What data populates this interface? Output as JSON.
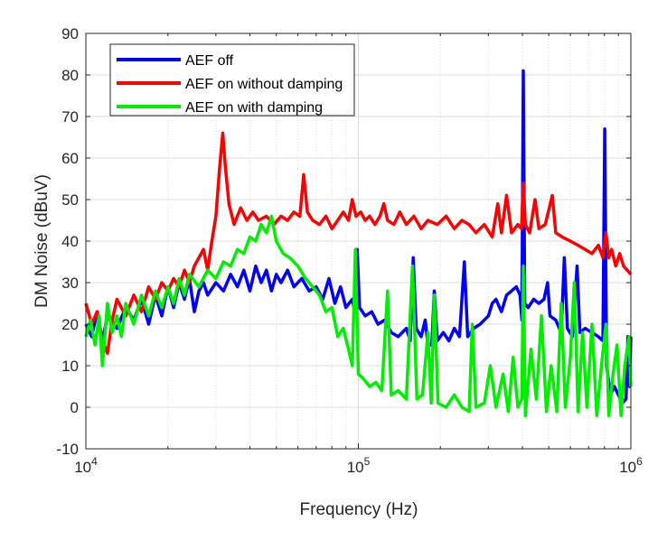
{
  "chart_data": {
    "type": "line",
    "title": "",
    "xlabel": "Frequency (Hz)",
    "ylabel": "DM Noise (dBuV)",
    "xscale": "log",
    "xlim": [
      10000,
      1000000
    ],
    "ylim": [
      -10,
      90
    ],
    "grid": true,
    "legend_position": "top-left",
    "x_ticks": [
      {
        "base": "10",
        "exp": "4",
        "value": 10000
      },
      {
        "base": "10",
        "exp": "5",
        "value": 100000
      },
      {
        "base": "10",
        "exp": "6",
        "value": 1000000
      }
    ],
    "y_ticks": [
      "-10",
      "0",
      "10",
      "20",
      "30",
      "40",
      "50",
      "60",
      "70",
      "80",
      "90"
    ],
    "series": [
      {
        "name": "AEF off",
        "color": "#0000ff",
        "points": [
          [
            10000,
            20
          ],
          [
            10500,
            17
          ],
          [
            11000,
            23
          ],
          [
            11500,
            16
          ],
          [
            12000,
            22
          ],
          [
            13000,
            19
          ],
          [
            14000,
            24
          ],
          [
            15000,
            21
          ],
          [
            16000,
            26
          ],
          [
            17000,
            20
          ],
          [
            18000,
            27
          ],
          [
            19000,
            22
          ],
          [
            20000,
            29
          ],
          [
            21000,
            24
          ],
          [
            22000,
            30
          ],
          [
            23000,
            26
          ],
          [
            24000,
            31
          ],
          [
            25000,
            23
          ],
          [
            26000,
            28
          ],
          [
            27000,
            30
          ],
          [
            28000,
            27
          ],
          [
            30000,
            30
          ],
          [
            32000,
            28
          ],
          [
            34000,
            32
          ],
          [
            36000,
            29
          ],
          [
            38000,
            33
          ],
          [
            40000,
            28
          ],
          [
            42000,
            34
          ],
          [
            44000,
            30
          ],
          [
            46000,
            33
          ],
          [
            48000,
            28
          ],
          [
            50000,
            32
          ],
          [
            52000,
            30
          ],
          [
            55000,
            33
          ],
          [
            58000,
            29
          ],
          [
            62000,
            31
          ],
          [
            66000,
            28
          ],
          [
            70000,
            29
          ],
          [
            74000,
            26
          ],
          [
            78000,
            31
          ],
          [
            82000,
            25
          ],
          [
            86000,
            29
          ],
          [
            90000,
            24
          ],
          [
            95000,
            26
          ],
          [
            97000,
            23
          ],
          [
            99000,
            38
          ],
          [
            101000,
            24
          ],
          [
            106000,
            22
          ],
          [
            112000,
            23
          ],
          [
            118000,
            20
          ],
          [
            125000,
            21
          ],
          [
            132000,
            18
          ],
          [
            140000,
            17
          ],
          [
            150000,
            19
          ],
          [
            155000,
            16
          ],
          [
            159000,
            36
          ],
          [
            163000,
            19
          ],
          [
            170000,
            17
          ],
          [
            176000,
            21
          ],
          [
            180000,
            15
          ],
          [
            186000,
            15
          ],
          [
            190000,
            28
          ],
          [
            195000,
            16
          ],
          [
            205000,
            18
          ],
          [
            215000,
            16
          ],
          [
            225000,
            19
          ],
          [
            235000,
            17
          ],
          [
            245000,
            35
          ],
          [
            252000,
            17
          ],
          [
            265000,
            19
          ],
          [
            280000,
            20
          ],
          [
            300000,
            22
          ],
          [
            310000,
            25
          ],
          [
            320000,
            26
          ],
          [
            335000,
            23
          ],
          [
            350000,
            27
          ],
          [
            365000,
            28
          ],
          [
            380000,
            29
          ],
          [
            392000,
            27
          ],
          [
            398000,
            21
          ],
          [
            403000,
            81
          ],
          [
            408000,
            25
          ],
          [
            420000,
            24
          ],
          [
            440000,
            26
          ],
          [
            460000,
            25
          ],
          [
            480000,
            26
          ],
          [
            495000,
            30
          ],
          [
            505000,
            22
          ],
          [
            530000,
            21
          ],
          [
            555000,
            18
          ],
          [
            570000,
            36
          ],
          [
            585000,
            19
          ],
          [
            610000,
            17
          ],
          [
            635000,
            34
          ],
          [
            650000,
            18
          ],
          [
            680000,
            19
          ],
          [
            720000,
            18
          ],
          [
            760000,
            17
          ],
          [
            790000,
            16
          ],
          [
            802000,
            67
          ],
          [
            815000,
            10
          ],
          [
            840000,
            3
          ],
          [
            870000,
            5
          ],
          [
            900000,
            3
          ],
          [
            930000,
            1
          ],
          [
            960000,
            2
          ],
          [
            975000,
            17
          ],
          [
            990000,
            5
          ],
          [
            1000000,
            17
          ]
        ]
      },
      {
        "name": "AEF on without damping",
        "color": "#ff0000",
        "points": [
          [
            10000,
            25
          ],
          [
            10500,
            20
          ],
          [
            11000,
            23
          ],
          [
            11500,
            16
          ],
          [
            12000,
            13
          ],
          [
            12500,
            21
          ],
          [
            13000,
            26
          ],
          [
            14000,
            22
          ],
          [
            15000,
            27
          ],
          [
            16000,
            23
          ],
          [
            17000,
            29
          ],
          [
            18000,
            26
          ],
          [
            19000,
            30
          ],
          [
            20000,
            28
          ],
          [
            21000,
            31
          ],
          [
            22000,
            29
          ],
          [
            23000,
            33
          ],
          [
            24000,
            30
          ],
          [
            25000,
            34
          ],
          [
            26000,
            36
          ],
          [
            27000,
            38
          ],
          [
            28000,
            33
          ],
          [
            29000,
            40
          ],
          [
            30000,
            46
          ],
          [
            31000,
            58
          ],
          [
            31800,
            66
          ],
          [
            32500,
            58
          ],
          [
            33500,
            49
          ],
          [
            35000,
            44
          ],
          [
            37000,
            48
          ],
          [
            39000,
            45
          ],
          [
            41000,
            47
          ],
          [
            43000,
            45
          ],
          [
            46000,
            46
          ],
          [
            49000,
            44
          ],
          [
            52000,
            46
          ],
          [
            55000,
            45
          ],
          [
            58000,
            47
          ],
          [
            61000,
            46
          ],
          [
            63000,
            56
          ],
          [
            65000,
            47
          ],
          [
            68000,
            45
          ],
          [
            72000,
            44
          ],
          [
            76000,
            46
          ],
          [
            80000,
            43
          ],
          [
            84000,
            45
          ],
          [
            88000,
            47
          ],
          [
            92000,
            45
          ],
          [
            95000,
            50
          ],
          [
            98000,
            46
          ],
          [
            102000,
            47
          ],
          [
            106000,
            45
          ],
          [
            110000,
            46
          ],
          [
            115000,
            44
          ],
          [
            120000,
            46
          ],
          [
            124000,
            49
          ],
          [
            128000,
            45
          ],
          [
            135000,
            44
          ],
          [
            142000,
            47
          ],
          [
            150000,
            44
          ],
          [
            160000,
            46
          ],
          [
            170000,
            43
          ],
          [
            180000,
            45
          ],
          [
            195000,
            44
          ],
          [
            210000,
            46
          ],
          [
            225000,
            43
          ],
          [
            240000,
            45
          ],
          [
            255000,
            44
          ],
          [
            270000,
            42
          ],
          [
            290000,
            44
          ],
          [
            310000,
            41
          ],
          [
            325000,
            49
          ],
          [
            335000,
            42
          ],
          [
            350000,
            51
          ],
          [
            365000,
            42
          ],
          [
            385000,
            44
          ],
          [
            397000,
            43
          ],
          [
            403000,
            54
          ],
          [
            410000,
            44
          ],
          [
            425000,
            42
          ],
          [
            445000,
            50
          ],
          [
            460000,
            43
          ],
          [
            485000,
            44
          ],
          [
            515000,
            51
          ],
          [
            530000,
            42
          ],
          [
            560000,
            41
          ],
          [
            600000,
            40
          ],
          [
            640000,
            39
          ],
          [
            680000,
            38
          ],
          [
            720000,
            37
          ],
          [
            760000,
            39
          ],
          [
            790000,
            36
          ],
          [
            810000,
            42
          ],
          [
            830000,
            36
          ],
          [
            850000,
            38
          ],
          [
            880000,
            34
          ],
          [
            910000,
            37
          ],
          [
            940000,
            34
          ],
          [
            970000,
            33
          ],
          [
            1000000,
            32
          ]
        ]
      },
      {
        "name": "AEF on with damping",
        "color": "#00ee00",
        "points": [
          [
            10000,
            17
          ],
          [
            10400,
            21
          ],
          [
            10800,
            15
          ],
          [
            11200,
            22
          ],
          [
            11500,
            10
          ],
          [
            12000,
            25
          ],
          [
            12500,
            18
          ],
          [
            13000,
            22
          ],
          [
            13500,
            17
          ],
          [
            14000,
            25
          ],
          [
            15000,
            20
          ],
          [
            16000,
            27
          ],
          [
            17000,
            22
          ],
          [
            18000,
            28
          ],
          [
            19000,
            24
          ],
          [
            20000,
            29
          ],
          [
            21000,
            25
          ],
          [
            22000,
            31
          ],
          [
            23000,
            27
          ],
          [
            24000,
            32
          ],
          [
            26000,
            29
          ],
          [
            28000,
            33
          ],
          [
            30000,
            31
          ],
          [
            32000,
            35
          ],
          [
            34000,
            34
          ],
          [
            36000,
            38
          ],
          [
            38000,
            37
          ],
          [
            40000,
            41
          ],
          [
            42000,
            40
          ],
          [
            44000,
            44
          ],
          [
            46000,
            42
          ],
          [
            48000,
            46
          ],
          [
            50000,
            40
          ],
          [
            53000,
            37
          ],
          [
            56000,
            36
          ],
          [
            60000,
            34
          ],
          [
            64000,
            31
          ],
          [
            68000,
            29
          ],
          [
            72000,
            27
          ],
          [
            76000,
            23
          ],
          [
            80000,
            24
          ],
          [
            84000,
            17
          ],
          [
            88000,
            19
          ],
          [
            92000,
            14
          ],
          [
            95000,
            10
          ],
          [
            97500,
            38
          ],
          [
            100000,
            8
          ],
          [
            104000,
            7
          ],
          [
            110000,
            5
          ],
          [
            116000,
            6
          ],
          [
            122000,
            4
          ],
          [
            128000,
            28
          ],
          [
            132000,
            3
          ],
          [
            140000,
            4
          ],
          [
            150000,
            2
          ],
          [
            158000,
            34
          ],
          [
            164000,
            2
          ],
          [
            172000,
            3
          ],
          [
            180000,
            18
          ],
          [
            185000,
            1
          ],
          [
            190000,
            27
          ],
          [
            196000,
            1
          ],
          [
            210000,
            0
          ],
          [
            225000,
            3
          ],
          [
            240000,
            0
          ],
          [
            255000,
            -1
          ],
          [
            262000,
            20
          ],
          [
            270000,
            0
          ],
          [
            290000,
            1
          ],
          [
            305000,
            10
          ],
          [
            320000,
            0
          ],
          [
            340000,
            8
          ],
          [
            355000,
            -1
          ],
          [
            370000,
            12
          ],
          [
            385000,
            0
          ],
          [
            398000,
            2
          ],
          [
            403000,
            34
          ],
          [
            410000,
            -2
          ],
          [
            430000,
            14
          ],
          [
            450000,
            2
          ],
          [
            470000,
            22
          ],
          [
            490000,
            -1
          ],
          [
            510000,
            10
          ],
          [
            535000,
            -1
          ],
          [
            555000,
            25
          ],
          [
            575000,
            0
          ],
          [
            600000,
            12
          ],
          [
            620000,
            30
          ],
          [
            640000,
            -1
          ],
          [
            665000,
            18
          ],
          [
            690000,
            0
          ],
          [
            720000,
            20
          ],
          [
            750000,
            -2
          ],
          [
            780000,
            10
          ],
          [
            810000,
            20
          ],
          [
            830000,
            -2
          ],
          [
            860000,
            8
          ],
          [
            890000,
            15
          ],
          [
            920000,
            -2
          ],
          [
            950000,
            10
          ],
          [
            985000,
            17
          ],
          [
            1000000,
            5
          ]
        ]
      }
    ]
  }
}
